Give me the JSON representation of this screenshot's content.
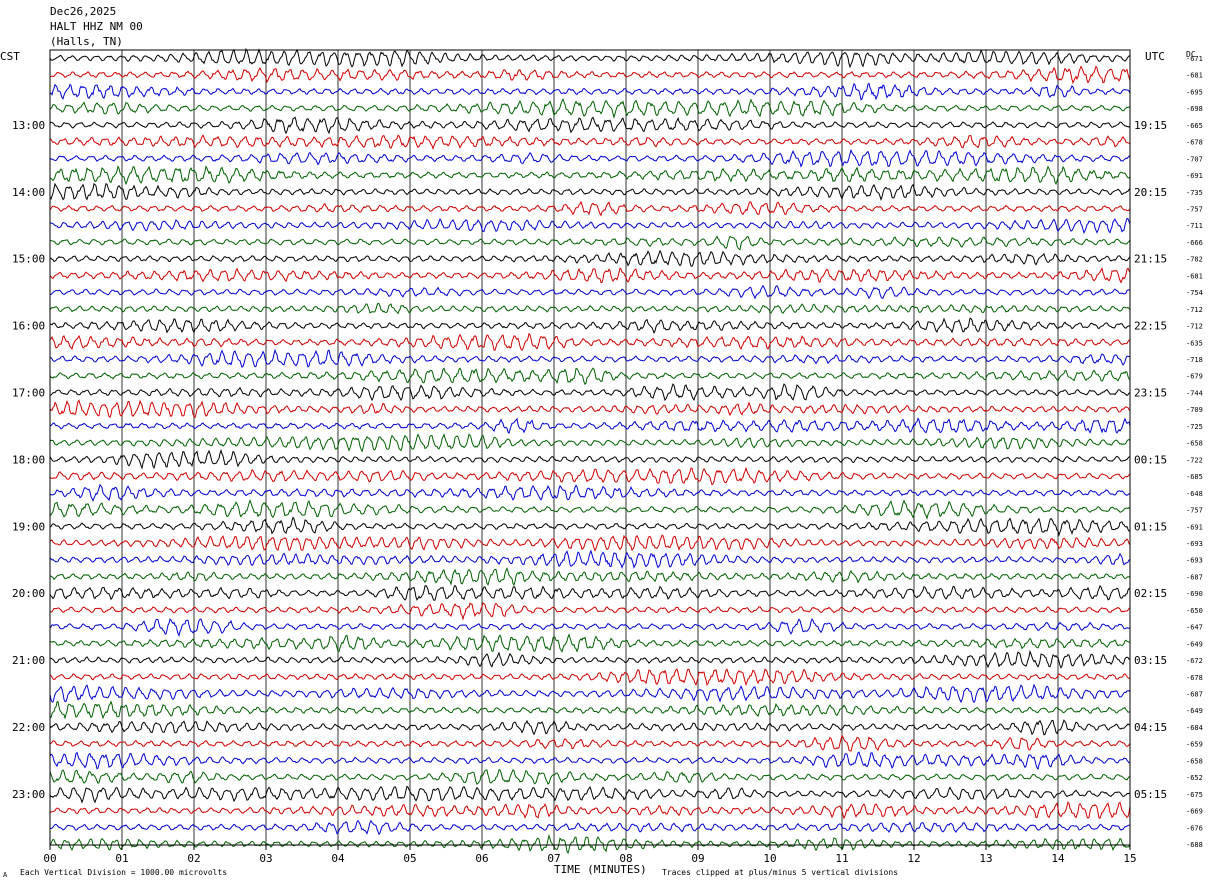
{
  "header": {
    "date": "Dec26,2025",
    "station": "HALT HHZ NM 00",
    "location": "(Halls, TN)"
  },
  "left_tz": "CST",
  "right_tz": "UTC",
  "dc_label": "DC",
  "footer": {
    "scale_note": "Each Vertical Division = 1000.00 microvolts",
    "xlabel": "TIME (MINUTES)",
    "clip_note": "Traces clipped at plus/minus 5 vertical divisions",
    "corner_mark": "A"
  },
  "colors": [
    "#000000",
    "#d00000",
    "#0000d0",
    "#006000"
  ],
  "chart_data": {
    "type": "line",
    "title": "HALT HHZ NM 00",
    "xlabel": "TIME (MINUTES)",
    "ylabel": "",
    "xlim": [
      0,
      15
    ],
    "x_ticks": [
      "00",
      "01",
      "02",
      "03",
      "04",
      "05",
      "06",
      "07",
      "08",
      "09",
      "10",
      "11",
      "12",
      "13",
      "14",
      "15"
    ],
    "left_time_labels": [
      "13:00",
      "14:00",
      "15:00",
      "16:00",
      "17:00",
      "18:00",
      "19:00",
      "20:00",
      "21:00",
      "22:00",
      "23:00"
    ],
    "right_time_labels": [
      "19:15",
      "20:15",
      "21:15",
      "22:15",
      "23:15",
      "00:15",
      "01:15",
      "02:15",
      "03:15",
      "04:15",
      "05:15"
    ],
    "dc_offsets": [
      "-671",
      "-681",
      "-695",
      "-698",
      "-665",
      "-678",
      "-707",
      "-691",
      "-735",
      "-757",
      "-711",
      "-666",
      "-782",
      "-681",
      "-754",
      "-712",
      "-712",
      "-635",
      "-718",
      "-679",
      "-744",
      "-709",
      "-725",
      "-658",
      "-722",
      "-685",
      "-648",
      "-757",
      "-691",
      "-693",
      "-693",
      "-687",
      "-690",
      "-650",
      "-647",
      "-649",
      "-672",
      "-678",
      "-687",
      "-649",
      "-684",
      "-659",
      "-658",
      "-652",
      "-675",
      "-669",
      "-676",
      "-688"
    ],
    "trace_count": 48,
    "grid": true
  }
}
